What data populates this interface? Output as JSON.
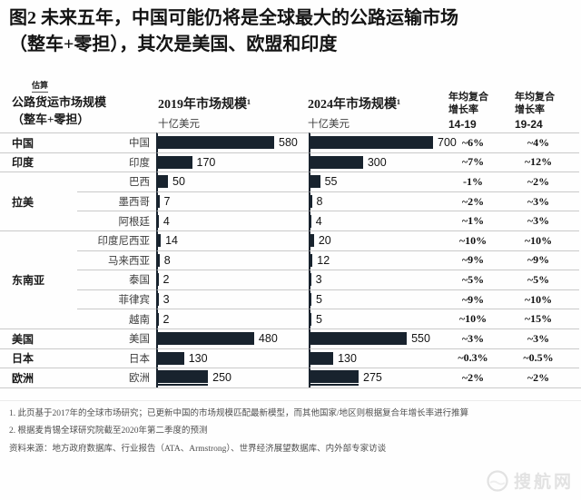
{
  "title": {
    "line1": "图2 未来五年，中国可能仍将是全球最大的公路运输市场",
    "line2": "（整车+零担），其次是美国、欧盟和印度"
  },
  "estimate_label": "估算",
  "table": {
    "col1_header_line1": "公路货运市场规模",
    "col1_header_line2": "（整车+零担）",
    "col_2019": {
      "title": "2019年市场规模¹",
      "unit": "十亿美元"
    },
    "col_2024": {
      "title": "2024年市场规模¹",
      "unit": "十亿美元"
    },
    "cagr_14_19": {
      "line1": "年均复合",
      "line2": "增长率",
      "range": "14-19"
    },
    "cagr_19_24": {
      "line1": "年均复合",
      "line2": "增长率",
      "range": "19-24"
    },
    "rows": [
      {
        "group": "中国",
        "country": "中国",
        "v2019": 580,
        "v2024": 700,
        "cagr1": "~6%",
        "cagr2": "~4%",
        "sep": "full"
      },
      {
        "group": "印度",
        "country": "印度",
        "v2019": 170,
        "v2024": 300,
        "cagr1": "~7%",
        "cagr2": "~12%",
        "sep": "full"
      },
      {
        "group": "",
        "country": "巴西",
        "v2019": 50,
        "v2024": 55,
        "cagr1": "-1%",
        "cagr2": "~2%",
        "sep": "full"
      },
      {
        "group": "拉美",
        "country": "墨西哥",
        "v2019": 7,
        "v2024": 8,
        "cagr1": "~2%",
        "cagr2": "~3%",
        "sep": "indent"
      },
      {
        "group": "",
        "country": "阿根廷",
        "v2019": 4,
        "v2024": 4,
        "cagr1": "~1%",
        "cagr2": "~3%",
        "sep": "indent"
      },
      {
        "group": "",
        "country": "印度尼西亚",
        "v2019": 14,
        "v2024": 20,
        "cagr1": "~10%",
        "cagr2": "~10%",
        "sep": "full"
      },
      {
        "group": "",
        "country": "马来西亚",
        "v2019": 8,
        "v2024": 12,
        "cagr1": "~9%",
        "cagr2": "~9%",
        "sep": "indent"
      },
      {
        "group": "东南亚",
        "country": "泰国",
        "v2019": 2,
        "v2024": 3,
        "cagr1": "~5%",
        "cagr2": "~5%",
        "sep": "indent"
      },
      {
        "group": "",
        "country": "菲律宾",
        "v2019": 3,
        "v2024": 5,
        "cagr1": "~9%",
        "cagr2": "~10%",
        "sep": "indent"
      },
      {
        "group": "",
        "country": "越南",
        "v2019": 2,
        "v2024": 5,
        "cagr1": "~10%",
        "cagr2": "~15%",
        "sep": "indent"
      },
      {
        "group": "美国",
        "country": "美国",
        "v2019": 480,
        "v2024": 550,
        "cagr1": "~3%",
        "cagr2": "~3%",
        "sep": "full"
      },
      {
        "group": "日本",
        "country": "日本",
        "v2019": 130,
        "v2024": 130,
        "cagr1": "~0.3%",
        "cagr2": "~0.5%",
        "sep": "full"
      },
      {
        "group": "欧洲",
        "country": "欧洲",
        "v2019": 250,
        "v2024": 275,
        "cagr1": "~2%",
        "cagr2": "~2%",
        "sep": "full"
      }
    ]
  },
  "footnotes": [
    "1. 此页基于2017年的全球市场研究；已更新中国的市场规模匹配最新模型，而其他国家/地区则根据复合年增长率进行推算",
    "2. 根据麦肯锡全球研究院截至2020年第二季度的预测"
  ],
  "source": "资料来源：地方政府数据库、行业报告（ATA、Armstrong）、世界经济展望数据库、内外部专家访谈",
  "watermark": "搜航网",
  "colors": {
    "bar": "#18232e",
    "axis": "#18232e",
    "separator": "#c9c9c9"
  },
  "chart_data": {
    "type": "bar",
    "title": "图2 未来五年，中国可能仍将是全球最大的公路运输市场（整车+零担），其次是美国、欧盟和印度",
    "subtitle": "估算",
    "unit": "十亿美元",
    "categories": [
      "中国",
      "印度",
      "巴西",
      "墨西哥",
      "阿根廷",
      "印度尼西亚",
      "马来西亚",
      "泰国",
      "菲律宾",
      "越南",
      "美国",
      "日本",
      "欧洲"
    ],
    "groups": [
      "中国",
      "印度",
      "拉美",
      "拉美",
      "拉美",
      "东南亚",
      "东南亚",
      "东南亚",
      "东南亚",
      "东南亚",
      "美国",
      "日本",
      "欧洲"
    ],
    "series": [
      {
        "name": "2019年市场规模（十亿美元）",
        "values": [
          580,
          170,
          50,
          7,
          4,
          14,
          8,
          2,
          3,
          2,
          480,
          130,
          250
        ]
      },
      {
        "name": "2024年市场规模（十亿美元）",
        "values": [
          700,
          300,
          55,
          8,
          4,
          20,
          12,
          3,
          5,
          5,
          550,
          130,
          275
        ]
      }
    ],
    "cagr_14_19": [
      "~6%",
      "~7%",
      "-1%",
      "~2%",
      "~1%",
      "~10%",
      "~9%",
      "~5%",
      "~9%",
      "~10%",
      "~3%",
      "~0.3%",
      "~2%"
    ],
    "cagr_19_24": [
      "~4%",
      "~12%",
      "~2%",
      "~3%",
      "~3%",
      "~10%",
      "~9%",
      "~5%",
      "~10%",
      "~15%",
      "~3%",
      "~0.5%",
      "~2%"
    ],
    "xlim_2019": [
      0,
      580
    ],
    "xlim_2024": [
      0,
      700
    ],
    "legend_position": "column-headers",
    "grid": false,
    "orientation": "horizontal"
  }
}
